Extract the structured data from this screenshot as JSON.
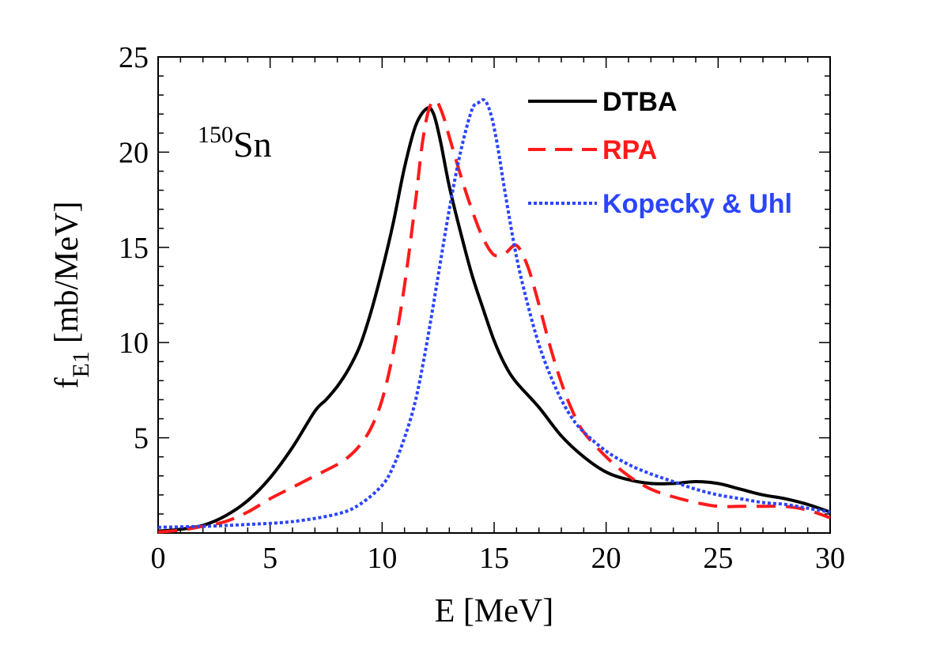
{
  "chart_data": {
    "type": "line",
    "title": "",
    "annotation": {
      "superscript": "150",
      "text": "Sn"
    },
    "xlabel": "E [MeV]",
    "ylabel": {
      "prefix": "f",
      "subscript": "E1",
      "suffix": "[mb/MeV]"
    },
    "xlim": [
      0,
      30
    ],
    "ylim": [
      0,
      25
    ],
    "xticks": [
      0,
      5,
      10,
      15,
      20,
      25,
      30
    ],
    "yticks": [
      5,
      10,
      15,
      20,
      25
    ],
    "legend_position": "top-right",
    "series": [
      {
        "name": "DTBA",
        "color": "#000000",
        "style": "solid",
        "x": [
          0,
          1,
          2,
          3,
          4,
          5,
          6,
          7,
          7.5,
          8,
          8.5,
          9,
          9.5,
          10,
          10.5,
          11,
          11.5,
          12,
          12.3,
          12.6,
          13,
          13.5,
          14,
          14.5,
          15,
          15.5,
          16,
          17,
          18,
          19,
          20,
          21,
          22,
          23,
          24,
          25,
          26,
          27,
          28,
          29,
          30
        ],
        "values": [
          0.1,
          0.2,
          0.4,
          0.9,
          1.7,
          2.9,
          4.5,
          6.4,
          7.0,
          7.7,
          8.6,
          9.8,
          11.6,
          13.8,
          16.3,
          19.2,
          21.4,
          22.3,
          22.0,
          20.6,
          18.2,
          15.8,
          13.6,
          11.8,
          10.1,
          8.8,
          7.9,
          6.6,
          5.1,
          4.0,
          3.2,
          2.8,
          2.6,
          2.6,
          2.7,
          2.6,
          2.3,
          2.0,
          1.8,
          1.5,
          1.1
        ]
      },
      {
        "name": "RPA",
        "color": "#ff1a1a",
        "style": "dashed",
        "x": [
          0,
          1,
          2,
          3,
          4,
          5,
          6,
          7,
          8,
          8.5,
          9,
          9.5,
          10,
          10.5,
          11,
          11.5,
          11.8,
          12.1,
          12.4,
          12.7,
          13,
          13.5,
          14,
          14.5,
          15,
          15.5,
          16,
          16.5,
          17,
          17.5,
          18,
          18.5,
          19,
          20,
          21,
          22,
          23,
          24,
          25,
          26,
          27,
          28,
          29,
          30
        ],
        "values": [
          0.05,
          0.15,
          0.35,
          0.6,
          1.1,
          1.8,
          2.4,
          3.0,
          3.6,
          4.0,
          4.6,
          5.5,
          7.0,
          9.5,
          13.0,
          17.5,
          20.5,
          22.3,
          22.7,
          22.0,
          20.8,
          18.8,
          17.0,
          15.5,
          14.6,
          14.7,
          15.1,
          14.0,
          12.0,
          9.8,
          7.9,
          6.4,
          5.3,
          4.0,
          3.0,
          2.3,
          1.9,
          1.6,
          1.4,
          1.4,
          1.4,
          1.4,
          1.2,
          0.8
        ]
      },
      {
        "name": "Kopecky & Uhl",
        "color": "#2b44ff",
        "style": "dotted",
        "x": [
          0,
          2,
          4,
          6,
          8,
          9,
          10,
          10.5,
          11,
          11.5,
          12,
          12.5,
          13,
          13.5,
          14,
          14.3,
          14.6,
          14.9,
          15.2,
          15.5,
          16,
          16.5,
          17,
          17.5,
          18,
          18.5,
          19,
          20,
          21,
          22,
          23,
          24,
          25,
          26,
          27,
          28,
          29,
          30
        ],
        "values": [
          0.3,
          0.35,
          0.45,
          0.6,
          1.0,
          1.5,
          2.5,
          3.5,
          5.0,
          7.0,
          10.0,
          13.5,
          17.0,
          20.0,
          22.2,
          22.6,
          22.7,
          21.8,
          20.0,
          17.8,
          14.5,
          12.0,
          9.9,
          8.3,
          7.0,
          6.0,
          5.3,
          4.3,
          3.6,
          3.1,
          2.7,
          2.3,
          2.0,
          1.8,
          1.6,
          1.5,
          1.3,
          1.1
        ]
      }
    ]
  }
}
